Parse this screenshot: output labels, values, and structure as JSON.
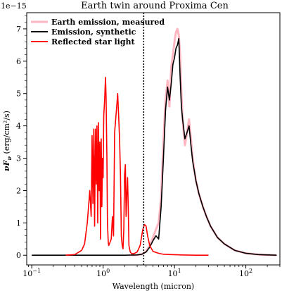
{
  "chart_data": {
    "type": "line",
    "title": "Earth twin around Proxima Cen",
    "xlabel": "Wavelength (micron)",
    "ylabel_main": "νF",
    "ylabel_sub": "ν",
    "ylabel_unit": " (erg/cm²/s)",
    "y_offset_label": "1e−15",
    "xscale": "log",
    "xlim": [
      0.085,
      300
    ],
    "ylim": [
      -0.3,
      7.5
    ],
    "x_ticks": [
      {
        "value": 0.1,
        "base": "10",
        "exp": "−1"
      },
      {
        "value": 1,
        "base": "10",
        "exp": "0"
      },
      {
        "value": 10,
        "base": "10",
        "exp": "1"
      },
      {
        "value": 100,
        "base": "10",
        "exp": "2"
      }
    ],
    "y_ticks": [
      0,
      1,
      2,
      3,
      4,
      5,
      6,
      7
    ],
    "vline": {
      "x": 3.7,
      "style": "dotted",
      "color": "#000000"
    },
    "legend": {
      "position": "top-left"
    },
    "series": [
      {
        "name": "Earth emission, measured",
        "color": "#ffb6c1",
        "x": [
          2.5,
          3,
          3.5,
          4,
          4.5,
          5,
          5.5,
          6,
          6.5,
          7,
          7.5,
          8,
          8.5,
          9,
          9.5,
          10,
          10.5,
          11,
          11.5,
          12,
          12.5,
          13,
          14,
          15,
          16,
          17,
          18,
          19,
          20,
          22,
          25,
          28,
          32,
          40,
          50,
          70,
          100,
          150,
          200,
          270
        ],
        "y": [
          0,
          0.01,
          0.03,
          0.12,
          0.3,
          0.55,
          0.8,
          1.0,
          1.8,
          3.5,
          4.8,
          5.4,
          4.6,
          5.8,
          6.2,
          6.6,
          6.9,
          7.0,
          6.8,
          6.2,
          5.0,
          4.2,
          3.4,
          3.8,
          4.2,
          3.6,
          3.0,
          2.6,
          2.3,
          1.9,
          1.5,
          1.2,
          0.9,
          0.55,
          0.35,
          0.15,
          0.06,
          0.02,
          0.01,
          0
        ]
      },
      {
        "name": "Emission, synthetic",
        "color": "#000000",
        "x": [
          0.1,
          1,
          2,
          3,
          3.5,
          4,
          4.5,
          5,
          5.5,
          6,
          6.5,
          7,
          7.5,
          8,
          8.5,
          9,
          9.5,
          10,
          10.5,
          11,
          11.5,
          12,
          12.5,
          13,
          14,
          15,
          16,
          17,
          18,
          19,
          20,
          22,
          25,
          28,
          32,
          40,
          50,
          70,
          100,
          150,
          200,
          270
        ],
        "y": [
          0,
          0,
          0,
          0.01,
          0.03,
          0.1,
          0.25,
          0.45,
          0.6,
          0.5,
          1.5,
          3.0,
          4.5,
          5.2,
          4.8,
          5.3,
          5.9,
          6.1,
          6.4,
          6.5,
          6.7,
          5.5,
          4.6,
          4.2,
          3.6,
          3.8,
          4.0,
          3.4,
          2.9,
          2.6,
          2.3,
          1.9,
          1.5,
          1.2,
          0.9,
          0.55,
          0.35,
          0.15,
          0.06,
          0.02,
          0.01,
          0
        ]
      },
      {
        "name": "Reflected star light",
        "color": "#ff0000",
        "x": [
          0.3,
          0.4,
          0.5,
          0.55,
          0.6,
          0.65,
          0.68,
          0.7,
          0.72,
          0.74,
          0.76,
          0.78,
          0.8,
          0.82,
          0.84,
          0.86,
          0.88,
          0.9,
          0.92,
          0.94,
          0.96,
          0.98,
          1.0,
          1.02,
          1.05,
          1.08,
          1.1,
          1.13,
          1.15,
          1.18,
          1.2,
          1.25,
          1.3,
          1.35,
          1.4,
          1.45,
          1.5,
          1.55,
          1.6,
          1.65,
          1.7,
          1.75,
          1.8,
          1.85,
          1.9,
          1.95,
          2.0,
          2.05,
          2.1,
          2.15,
          2.2,
          2.25,
          2.3,
          2.4,
          2.5,
          2.7,
          3.0,
          3.3,
          3.6,
          3.8,
          4.0,
          4.2,
          4.5,
          5.0,
          6.0,
          7.0,
          9.0,
          12.0,
          20.0,
          30.0
        ],
        "y": [
          0,
          0.02,
          0.15,
          0.35,
          1.0,
          2.0,
          1.2,
          3.7,
          1.6,
          3.9,
          0.9,
          3.9,
          2.2,
          4.0,
          1.0,
          4.1,
          2.0,
          3.5,
          0.5,
          3.6,
          1.5,
          3.0,
          2.4,
          4.3,
          4.8,
          5.5,
          4.9,
          3.0,
          1.0,
          0.4,
          0.3,
          0.4,
          0.5,
          1.2,
          0.6,
          3.8,
          4.2,
          4.6,
          5.0,
          4.3,
          3.6,
          2.5,
          0.6,
          0.3,
          0.2,
          0.8,
          2.5,
          2.8,
          1.2,
          1.9,
          2.4,
          1.5,
          0.3,
          0.1,
          0.05,
          0.05,
          0.1,
          0.3,
          0.8,
          0.95,
          0.9,
          0.6,
          0.3,
          0.12,
          0.06,
          0.03,
          0.02,
          0.01,
          0,
          0
        ]
      }
    ]
  }
}
